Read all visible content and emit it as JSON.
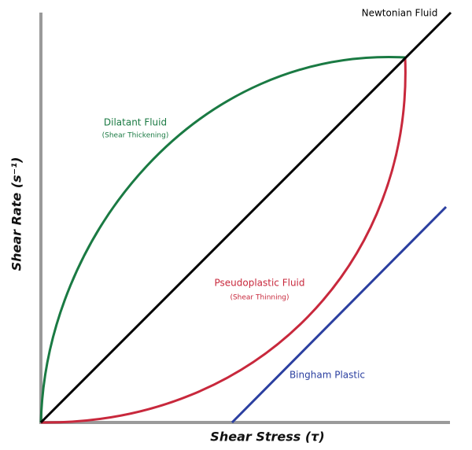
{
  "axes": {
    "x_label": "Shear Stress (τ)",
    "y_label": "Shear Rate (s⁻¹)"
  },
  "curves": [
    {
      "label": "Newtonian Fluid"
    },
    {
      "label": "Dilatant Fluid",
      "note": "(Shear Thickening)"
    },
    {
      "label": "Pseudoplastic Fluid",
      "note": "(Shear Thinning)"
    },
    {
      "label": "Bingham Plastic"
    }
  ]
}
